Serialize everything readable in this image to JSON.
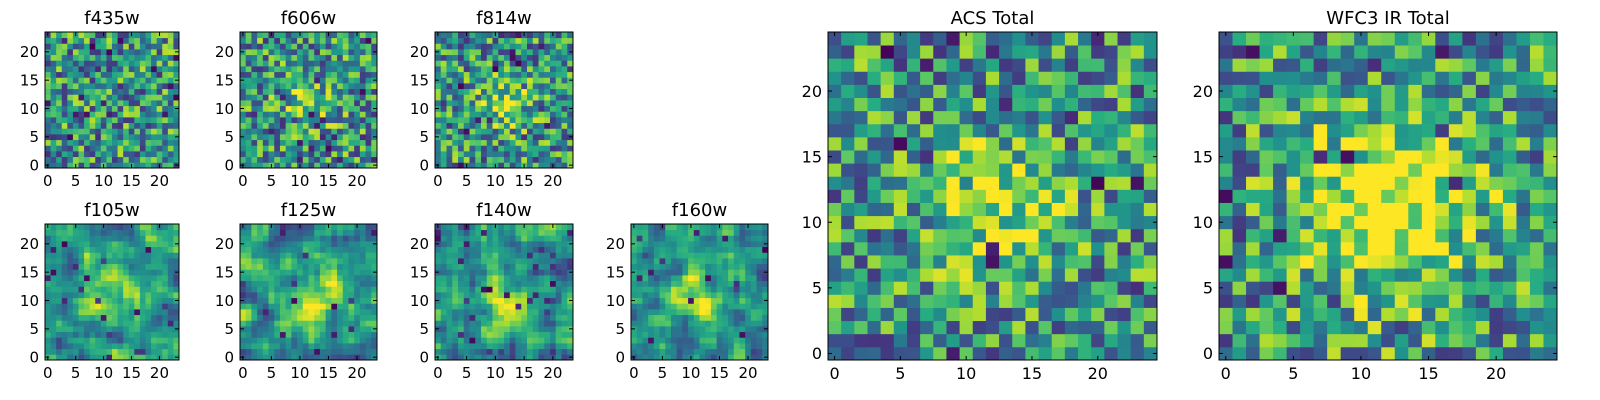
{
  "chart_data": [
    {
      "type": "heatmap",
      "title": "f435w",
      "grid_size": 24,
      "xlim": [
        0,
        24
      ],
      "ylim": [
        0,
        24
      ],
      "xticks": [
        0,
        5,
        10,
        15,
        20
      ],
      "yticks": [
        0,
        5,
        10,
        15,
        20
      ],
      "colormap": "viridis",
      "pattern": "noise",
      "seed": 11,
      "values": []
    },
    {
      "type": "heatmap",
      "title": "f606w",
      "grid_size": 24,
      "xlim": [
        0,
        24
      ],
      "ylim": [
        0,
        24
      ],
      "xticks": [
        0,
        5,
        10,
        15,
        20
      ],
      "yticks": [
        0,
        5,
        10,
        15,
        20
      ],
      "colormap": "viridis",
      "pattern": "weak-center",
      "seed": 23,
      "values": []
    },
    {
      "type": "heatmap",
      "title": "f814w",
      "grid_size": 24,
      "xlim": [
        0,
        24
      ],
      "ylim": [
        0,
        24
      ],
      "xticks": [
        0,
        5,
        10,
        15,
        20
      ],
      "yticks": [
        0,
        5,
        10,
        15,
        20
      ],
      "colormap": "viridis",
      "pattern": "weak-center",
      "seed": 37,
      "values": []
    },
    {
      "type": "heatmap",
      "title": "f105w",
      "grid_size": 24,
      "xlim": [
        0,
        24
      ],
      "ylim": [
        0,
        24
      ],
      "xticks": [
        0,
        5,
        10,
        15,
        20
      ],
      "yticks": [
        0,
        5,
        10,
        15,
        20
      ],
      "colormap": "viridis",
      "pattern": "smooth-center",
      "seed": 41,
      "values": []
    },
    {
      "type": "heatmap",
      "title": "f125w",
      "grid_size": 24,
      "xlim": [
        0,
        24
      ],
      "ylim": [
        0,
        24
      ],
      "xticks": [
        0,
        5,
        10,
        15,
        20
      ],
      "yticks": [
        0,
        5,
        10,
        15,
        20
      ],
      "colormap": "viridis",
      "pattern": "smooth-center",
      "seed": 53,
      "values": []
    },
    {
      "type": "heatmap",
      "title": "f140w",
      "grid_size": 24,
      "xlim": [
        0,
        24
      ],
      "ylim": [
        0,
        24
      ],
      "xticks": [
        0,
        5,
        10,
        15,
        20
      ],
      "yticks": [
        0,
        5,
        10,
        15,
        20
      ],
      "colormap": "viridis",
      "pattern": "smooth-center",
      "seed": 67,
      "values": []
    },
    {
      "type": "heatmap",
      "title": "f160w",
      "grid_size": 24,
      "xlim": [
        0,
        24
      ],
      "ylim": [
        0,
        24
      ],
      "xticks": [
        0,
        5,
        10,
        15,
        20
      ],
      "yticks": [
        0,
        5,
        10,
        15,
        20
      ],
      "colormap": "viridis",
      "pattern": "smooth-center",
      "seed": 79,
      "values": []
    },
    {
      "type": "heatmap",
      "title": "ACS Total",
      "grid_size": 25,
      "xlim": [
        0,
        25
      ],
      "ylim": [
        0,
        25
      ],
      "xticks": [
        0,
        5,
        10,
        15,
        20
      ],
      "yticks": [
        0,
        5,
        10,
        15,
        20
      ],
      "colormap": "viridis",
      "pattern": "center",
      "seed": 97,
      "values": []
    },
    {
      "type": "heatmap",
      "title": "WFC3 IR Total",
      "grid_size": 25,
      "xlim": [
        0,
        25
      ],
      "ylim": [
        0,
        25
      ],
      "xticks": [
        0,
        5,
        10,
        15,
        20
      ],
      "yticks": [
        0,
        5,
        10,
        15,
        20
      ],
      "colormap": "viridis",
      "pattern": "strong-center",
      "seed": 113,
      "values": []
    }
  ]
}
